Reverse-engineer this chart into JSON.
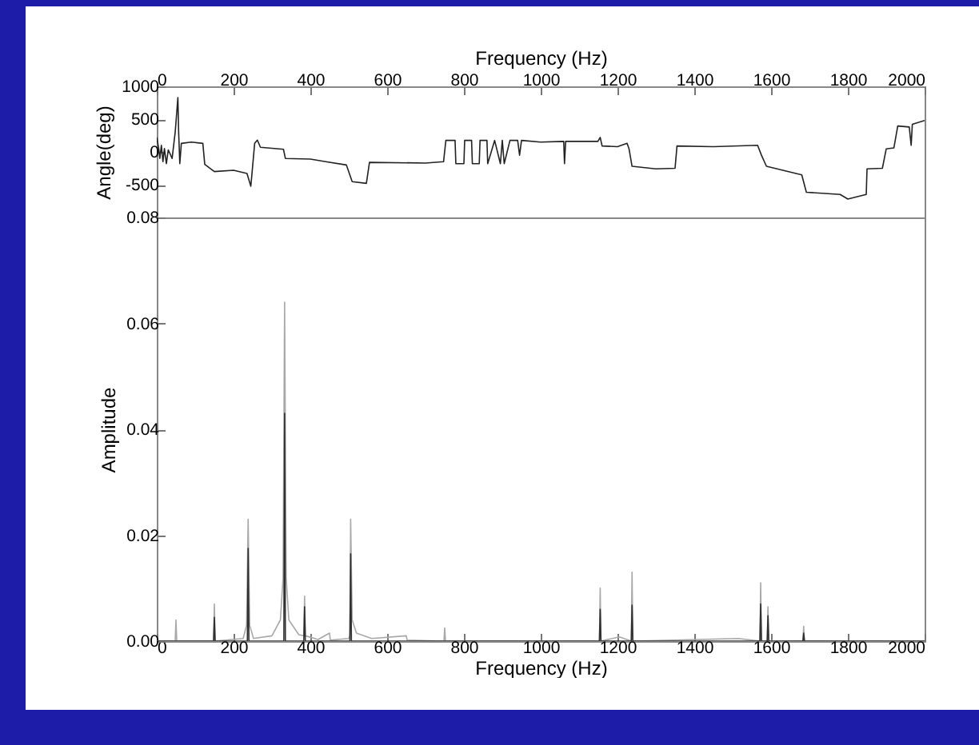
{
  "chart_data": [
    {
      "type": "line",
      "xlabel": "Frequency (Hz)",
      "ylabel": "Angle(deg)",
      "xlim": [
        0,
        2000
      ],
      "xticks": [
        0,
        200,
        400,
        600,
        800,
        1000,
        1200,
        1400,
        1600,
        1800,
        2000
      ],
      "ylim": [
        -1000,
        1000
      ],
      "yticks": [
        {
          "value": -1000,
          "label": null
        },
        -500,
        0,
        500,
        1000
      ],
      "series": [
        {
          "color": "#222222",
          "x": [
            0,
            5,
            8,
            12,
            16,
            20,
            25,
            30,
            40,
            48,
            52,
            55,
            57,
            60,
            64,
            90,
            120,
            125,
            150,
            200,
            235,
            245,
            250,
            255,
            262,
            270,
            330,
            335,
            400,
            440,
            494,
            509,
            546,
            554,
            700,
            747,
            753,
            777,
            779,
            800,
            802,
            820,
            822,
            840,
            842,
            860,
            862,
            880,
            895,
            900,
            905,
            920,
            940,
            945,
            950,
            1000,
            1060,
            1062,
            1065,
            1149,
            1155,
            1160,
            1200,
            1225,
            1230,
            1238,
            1300,
            1350,
            1355,
            1450,
            1565,
            1575,
            1588,
            1680,
            1692,
            1780,
            1800,
            1848,
            1850,
            1890,
            1900,
            1920,
            1930,
            1960,
            1965,
            1968,
            2000
          ],
          "values": [
            220,
            50,
            -100,
            100,
            -150,
            50,
            -180,
            30,
            -100,
            300,
            600,
            830,
            300,
            -180,
            130,
            150,
            130,
            -190,
            -300,
            -280,
            -330,
            -525,
            -200,
            130,
            180,
            70,
            40,
            -100,
            -110,
            -150,
            -200,
            -455,
            -480,
            -160,
            -170,
            -150,
            175,
            175,
            -180,
            -180,
            175,
            175,
            -180,
            -180,
            175,
            175,
            -180,
            175,
            -180,
            175,
            -180,
            175,
            175,
            -50,
            175,
            150,
            160,
            -180,
            160,
            160,
            220,
            90,
            80,
            130,
            50,
            -220,
            -260,
            -250,
            90,
            80,
            100,
            -50,
            -220,
            -350,
            -615,
            -650,
            -720,
            -650,
            -260,
            -250,
            45,
            60,
            395,
            380,
            100,
            420,
            480
          ]
        }
      ]
    },
    {
      "type": "line",
      "xlabel": "Frequency (Hz)",
      "ylabel": "Amplitude",
      "xlim": [
        0,
        2000
      ],
      "xticks": [
        0,
        200,
        400,
        600,
        800,
        1000,
        1200,
        1400,
        1600,
        1800,
        2000
      ],
      "ylim": [
        0,
        0.08
      ],
      "yticks": [
        {
          "value": 0,
          "label": "0.00"
        },
        {
          "value": 0.02,
          "label": "0.02"
        },
        {
          "value": 0.04,
          "label": "0.04"
        },
        {
          "value": 0.06,
          "label": "0.06"
        },
        {
          "value": 0.08,
          "label": "0.08"
        }
      ],
      "series": [
        {
          "color": "#a8a8a8",
          "x": [
            0,
            48,
            50,
            52,
            148,
            150,
            152,
            225,
            234,
            238,
            242,
            252,
            300,
            322,
            329,
            333,
            337,
            344,
            370,
            383,
            385,
            387,
            420,
            450,
            452,
            500,
            503,
            505,
            509,
            520,
            560,
            650,
            652,
            748,
            750,
            752,
            1153,
            1155,
            1157,
            1205,
            1236,
            1238,
            1240,
            1515,
            1571,
            1573,
            1575,
            1590,
            1592,
            1594,
            1683,
            1685,
            1687,
            2000
          ],
          "values": [
            0,
            0,
            0.004,
            0,
            0,
            0.007,
            0,
            0.0005,
            0.003,
            0.023,
            0.003,
            0.0005,
            0.001,
            0.004,
            0.012,
            0.064,
            0.012,
            0.004,
            0.0012,
            0.001,
            0.0085,
            0.001,
            0.0003,
            0.0015,
            0.0002,
            0.0005,
            0.001,
            0.023,
            0.004,
            0.0015,
            0.0005,
            0.001,
            0.0002,
            0,
            0.0025,
            0,
            0,
            0.01,
            0,
            0.0008,
            0,
            0.013,
            0,
            0.0005,
            0,
            0.011,
            0,
            0,
            0.0065,
            0,
            0,
            0.0028,
            0,
            0
          ]
        },
        {
          "color": "#303030",
          "x": [
            0,
            148,
            150,
            152,
            236,
            238,
            240,
            331,
            333,
            335,
            383,
            385,
            387,
            503,
            505,
            507,
            1153,
            1155,
            1157,
            1236,
            1238,
            1240,
            1571,
            1573,
            1575,
            1590,
            1592,
            1594,
            1683,
            1685,
            1687,
            2000
          ],
          "values": [
            0,
            0,
            0.0045,
            0,
            0,
            0.0175,
            0,
            0,
            0.043,
            0,
            0,
            0.0065,
            0,
            0,
            0.0165,
            0,
            0,
            0.006,
            0,
            0,
            0.0068,
            0,
            0,
            0.007,
            0,
            0,
            0.0048,
            0,
            0,
            0.0015,
            0,
            0
          ]
        }
      ]
    }
  ]
}
